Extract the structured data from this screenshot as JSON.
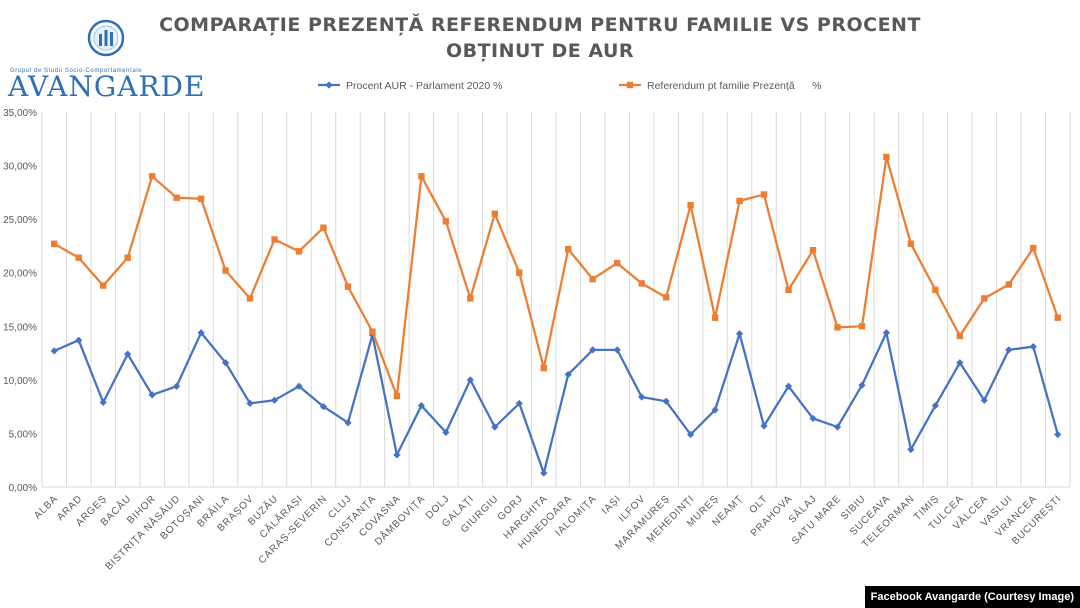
{
  "title": "COMPARAȚIE PREZENȚĂ REFERENDUM PENTRU FAMILIE VS PROCENT OBȚINUT DE AUR",
  "logo": {
    "name": "AVANGARDE",
    "tagline": "Grupul de Studii Socio-Comportamentale"
  },
  "credit": "Facebook Avangarde (Courtesy Image)",
  "colors": {
    "aur": "#4472c4",
    "referendum": "#ed7d31",
    "grid": "#d9d9d9",
    "axis_text": "#595959"
  },
  "chart_data": {
    "type": "line",
    "title": "COMPARAȚIE PREZENȚĂ REFERENDUM PENTRU FAMILIE VS PROCENT OBȚINUT DE AUR",
    "xlabel": "",
    "ylabel": "",
    "ylim": [
      0,
      35
    ],
    "yticks": [
      "0,00%",
      "5,00%",
      "10,00%",
      "15,00%",
      "20,00%",
      "25,00%",
      "30,00%",
      "35,00%"
    ],
    "grid": "vertical",
    "legend": "top-center",
    "categories": [
      "ALBA",
      "ARAD",
      "ARGEȘ",
      "BACĂU",
      "BIHOR",
      "BISTRIȚA NĂSĂUD",
      "BOTOȘANI",
      "BRĂILA",
      "BRAȘOV",
      "BUZĂU",
      "CĂLĂRAȘI",
      "CARAȘ-SEVERIN",
      "CLUJ",
      "CONSTANȚA",
      "COVASNA",
      "DÂMBOVIȚA",
      "DOLJ",
      "GALAȚI",
      "GIURGIU",
      "GORJ",
      "HARGHITA",
      "HUNEDOARA",
      "IALOMIȚA",
      "IAȘI",
      "ILFOV",
      "MARAMUREȘ",
      "MEHEDINȚI",
      "MUREȘ",
      "NEAMȚ",
      "OLT",
      "PRAHOVA",
      "SĂLAJ",
      "SATU MARE",
      "SIBIU",
      "SUCEAVA",
      "TELEORMAN",
      "TIMIȘ",
      "TULCEA",
      "VÂLCEA",
      "VASLUI",
      "VRANCEA",
      "BUCUREȘTI"
    ],
    "series": [
      {
        "name": "Procent AUR - Parlament 2020 %",
        "marker": "diamond",
        "values": [
          12.7,
          13.7,
          7.9,
          12.4,
          8.6,
          9.4,
          14.4,
          11.6,
          7.8,
          8.1,
          9.4,
          7.5,
          6.0,
          14.2,
          3.0,
          7.6,
          5.1,
          10.0,
          5.6,
          7.8,
          1.3,
          10.5,
          12.8,
          12.8,
          8.4,
          8.0,
          4.9,
          7.2,
          14.3,
          5.7,
          9.4,
          6.4,
          5.6,
          9.5,
          14.4,
          3.5,
          7.6,
          11.6,
          8.1,
          12.8,
          13.1,
          4.9
        ]
      },
      {
        "name": "Referendum pt familie Prezență      %",
        "marker": "square",
        "values": [
          22.7,
          21.4,
          18.8,
          21.4,
          29.0,
          27.0,
          26.9,
          20.2,
          17.6,
          23.1,
          22.0,
          24.2,
          18.7,
          14.5,
          8.5,
          29.0,
          24.8,
          17.6,
          25.5,
          20.0,
          11.1,
          22.2,
          19.4,
          20.9,
          19.0,
          17.7,
          26.3,
          15.8,
          26.7,
          27.3,
          18.4,
          22.1,
          14.9,
          15.0,
          30.8,
          22.7,
          18.4,
          14.1,
          17.6,
          18.9,
          22.3,
          15.8
        ]
      }
    ]
  }
}
